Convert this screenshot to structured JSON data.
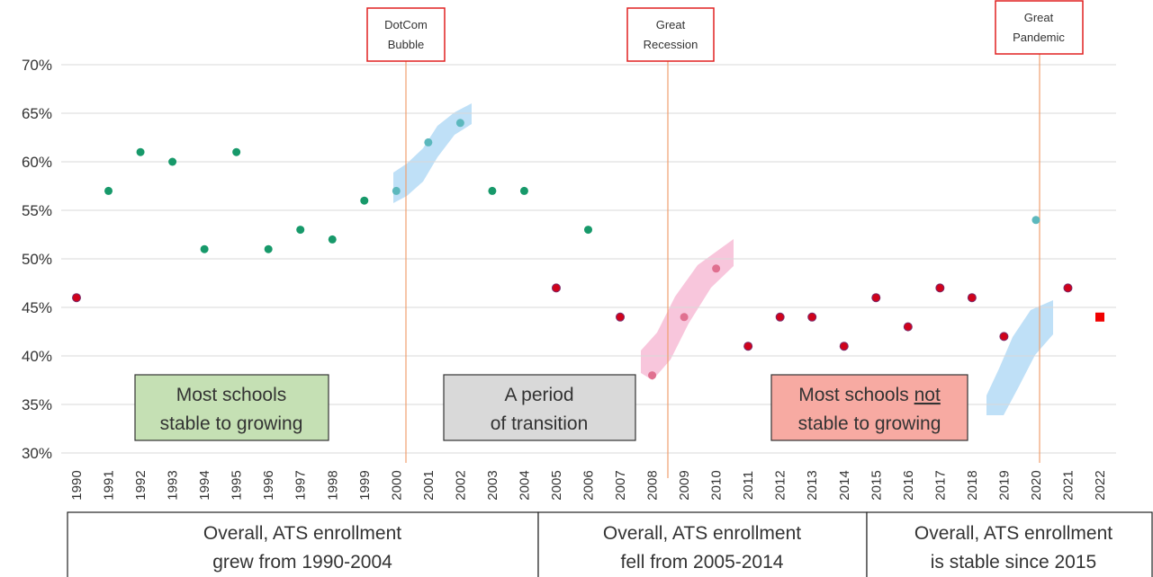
{
  "chart_data": {
    "type": "scatter",
    "categories": [
      "1990",
      "1991",
      "1992",
      "1993",
      "1994",
      "1995",
      "1996",
      "1997",
      "1998",
      "1999",
      "2000",
      "2001",
      "2002",
      "2003",
      "2004",
      "2005",
      "2006",
      "2007",
      "2008",
      "2009",
      "2010",
      "2011",
      "2012",
      "2013",
      "2014",
      "2015",
      "2016",
      "2017",
      "2018",
      "2019",
      "2020",
      "2021",
      "2022"
    ],
    "values": [
      46,
      57,
      61,
      60,
      51,
      61,
      51,
      53,
      52,
      56,
      57,
      62,
      64,
      57,
      57,
      47,
      53,
      44,
      38,
      44,
      49,
      41,
      44,
      44,
      41,
      46,
      43,
      47,
      46,
      42,
      54,
      47,
      44
    ],
    "colors": [
      "#d0021b",
      "#17996a",
      "#17996a",
      "#17996a",
      "#17996a",
      "#17996a",
      "#17996a",
      "#17996a",
      "#17996a",
      "#17996a",
      "#5cb8bd",
      "#5cb8bd",
      "#5cb8bd",
      "#17996a",
      "#17996a",
      "#d0021b",
      "#17996a",
      "#d0021b",
      "#e07090",
      "#e07090",
      "#e07090",
      "#d0021b",
      "#d0021b",
      "#d0021b",
      "#d0021b",
      "#d0021b",
      "#d0021b",
      "#d0021b",
      "#d0021b",
      "#d0021b",
      "#5cb8bd",
      "#d0021b",
      "#f00000"
    ],
    "markers": [
      "circle",
      "circle",
      "circle",
      "circle",
      "circle",
      "circle",
      "circle",
      "circle",
      "circle",
      "circle",
      "circle",
      "circle",
      "circle",
      "circle",
      "circle",
      "circle",
      "circle",
      "circle",
      "circle",
      "circle",
      "circle",
      "circle",
      "circle",
      "circle",
      "circle",
      "circle",
      "circle",
      "circle",
      "circle",
      "circle",
      "circle",
      "circle",
      "square"
    ],
    "ylim": [
      30,
      70
    ],
    "yticks": [
      {
        "value": 30,
        "label": "30%"
      },
      {
        "value": 35,
        "label": "35%"
      },
      {
        "value": 40,
        "label": "40%"
      },
      {
        "value": 45,
        "label": "45%"
      },
      {
        "value": 50,
        "label": "50%"
      },
      {
        "value": 55,
        "label": "55%"
      },
      {
        "value": 60,
        "label": "60%"
      },
      {
        "value": 65,
        "label": "65%"
      },
      {
        "value": 70,
        "label": "70%"
      }
    ],
    "grid": true,
    "events": [
      [
        "DotCom",
        "Bubble"
      ],
      [
        "Great",
        "Recession"
      ],
      [
        "Great",
        "Pandemic"
      ]
    ],
    "phases": [
      [
        "Most schools",
        "stable to growing"
      ],
      [
        "A period",
        "of transition"
      ],
      {
        "line1": "Most schools",
        "underlined": "not",
        "line2": "stable to growing"
      }
    ],
    "summaries": [
      [
        "Overall, ATS enrollment",
        "grew from 1990-2004"
      ],
      [
        "Overall, ATS enrollment",
        "fell from 2005-2014"
      ],
      [
        "Overall, ATS enrollment",
        "is stable since 2015"
      ]
    ]
  }
}
